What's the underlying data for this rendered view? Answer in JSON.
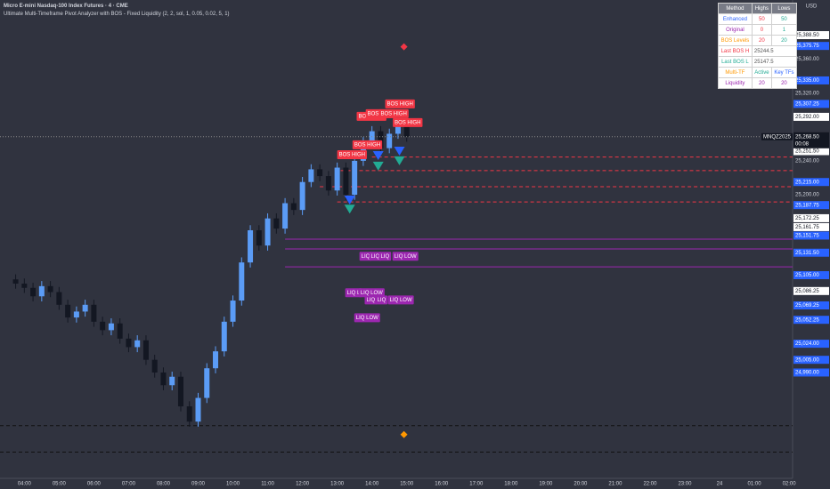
{
  "header": {
    "symbol": "Micro E-mini Nasdaq-100 Index Futures · 4 · CME",
    "indicator": "Ultimate Multi-Timeframe Pivot Analyzer with BOS - Fixed Liquidity (2, 2, sol, 1, 0.05, 0.02, 5, 1)",
    "currency": "USD"
  },
  "chart_data": {
    "type": "candlestick",
    "x": [
      3.75,
      4,
      4.25,
      4.5,
      4.75,
      5,
      5.25,
      5.5,
      5.75,
      6,
      6.25,
      6.5,
      6.75,
      7,
      7.25,
      7.5,
      7.75,
      8,
      8.25,
      8.5,
      8.75,
      9,
      9.25,
      9.5,
      9.75,
      10,
      10.25,
      10.5,
      10.75,
      11,
      11.25,
      11.5,
      11.75,
      12,
      12.25,
      12.5,
      12.75,
      13,
      13.25,
      13.5,
      13.75,
      14,
      14.25,
      14.5,
      14.75,
      15
    ],
    "open": [
      25100,
      25095,
      25090,
      25080,
      25092,
      25085,
      25070,
      25055,
      25062,
      25070,
      25050,
      25040,
      25048,
      25030,
      25020,
      25028,
      25005,
      24990,
      24975,
      24985,
      24950,
      24932,
      24960,
      24995,
      25015,
      25050,
      25075,
      25120,
      25158,
      25140,
      25172,
      25160,
      25190,
      25182,
      25215,
      25230,
      25222,
      25205,
      25232,
      25200,
      25240,
      25262,
      25275,
      25255,
      25272,
      25282
    ],
    "high": [
      25106,
      25101,
      25096,
      25098,
      25098,
      25091,
      25076,
      25068,
      25076,
      25076,
      25056,
      25054,
      25054,
      25036,
      25034,
      25034,
      25011,
      24996,
      24991,
      24991,
      24956,
      24966,
      25001,
      25021,
      25056,
      25081,
      25126,
      25164,
      25164,
      25178,
      25178,
      25196,
      25196,
      25221,
      25236,
      25236,
      25228,
      25238,
      25238,
      25246,
      25268,
      25281,
      25281,
      25278,
      25288,
      25288
    ],
    "low": [
      25089,
      25084,
      25074,
      25074,
      25079,
      25064,
      25049,
      25049,
      25056,
      25044,
      25034,
      25034,
      25024,
      25014,
      25014,
      24999,
      24984,
      24969,
      24969,
      24944,
      24926,
      24926,
      24954,
      24989,
      25009,
      25044,
      25069,
      25114,
      25134,
      25134,
      25154,
      25154,
      25176,
      25176,
      25209,
      25216,
      25199,
      25199,
      25194,
      25194,
      25234,
      25256,
      25249,
      25249,
      25266,
      25262.5
    ],
    "close": [
      25095,
      25090,
      25080,
      25092,
      25085,
      25070,
      25055,
      25062,
      25070,
      25050,
      25040,
      25048,
      25030,
      25020,
      25028,
      25005,
      24990,
      24975,
      24985,
      24950,
      24932,
      24960,
      24995,
      25015,
      25050,
      25075,
      25120,
      25158,
      25140,
      25172,
      25160,
      25190,
      25182,
      25215,
      25230,
      25222,
      25205,
      25232,
      25200,
      25240,
      25262,
      25275,
      25255,
      25272,
      25282,
      25268.5
    ],
    "up_color": "#5b9cf6",
    "down_color": "#131722",
    "xlim": [
      3.3,
      26.1
    ],
    "ylim": [
      24865,
      25430
    ],
    "xticks": [
      {
        "value": 4,
        "label": "04:00"
      },
      {
        "value": 5,
        "label": "05:00"
      },
      {
        "value": 6,
        "label": "06:00"
      },
      {
        "value": 7,
        "label": "07:00"
      },
      {
        "value": 8,
        "label": "08:00"
      },
      {
        "value": 9,
        "label": "09:00"
      },
      {
        "value": 10,
        "label": "10:00"
      },
      {
        "value": 11,
        "label": "11:00"
      },
      {
        "value": 12,
        "label": "12:00"
      },
      {
        "value": 13,
        "label": "13:00"
      },
      {
        "value": 14,
        "label": "14:00"
      },
      {
        "value": 15,
        "label": "15:00"
      },
      {
        "value": 16,
        "label": "16:00"
      },
      {
        "value": 17,
        "label": "17:00"
      },
      {
        "value": 18,
        "label": "18:00"
      },
      {
        "value": 19,
        "label": "19:00"
      },
      {
        "value": 20,
        "label": "20:00"
      },
      {
        "value": 21,
        "label": "21:00"
      },
      {
        "value": 22,
        "label": "22:00"
      },
      {
        "value": 23,
        "label": "23:00"
      },
      24,
      {
        "value": 25,
        "label": "01:00"
      },
      {
        "value": 26,
        "label": "02:00"
      }
    ],
    "yticks": [
      {
        "value": 25360,
        "label": "25,360.00"
      },
      {
        "value": 25320,
        "label": "25,320.00"
      },
      {
        "value": 25240,
        "label": "25,240.00"
      },
      {
        "value": 25200,
        "label": "25,200.00"
      }
    ],
    "price_markers": [
      {
        "value": 25388.5,
        "label": "25,388.50",
        "color": "#ffffff"
      },
      {
        "value": 25375.75,
        "label": "25,375.75",
        "color": "#2962ff"
      },
      {
        "value": 25335,
        "label": "25,335.00",
        "color": "#2962ff"
      },
      {
        "value": 25307.25,
        "label": "25,307.25",
        "color": "#2962ff"
      },
      {
        "value": 25292,
        "label": "25,292.00",
        "color": "#ffffff"
      },
      {
        "value": 25251.5,
        "label": "25,251.50",
        "color": "#ffffff"
      },
      {
        "value": 25215,
        "label": "25,215.00",
        "color": "#2962ff"
      },
      {
        "value": 25187.75,
        "label": "25,187.75",
        "color": "#2962ff"
      },
      {
        "value": 25172.25,
        "label": "25,172.25",
        "color": "#ffffff"
      },
      {
        "value": 25161.75,
        "label": "25,161.75",
        "color": "#ffffff"
      },
      {
        "value": 25151.75,
        "label": "25,151.75",
        "color": "#2962ff"
      },
      {
        "value": 25131.5,
        "label": "25,131.50",
        "color": "#2962ff"
      },
      {
        "value": 25105,
        "label": "25,105.00",
        "color": "#2962ff"
      },
      {
        "value": 25086.25,
        "label": "25,086.25",
        "color": "#ffffff"
      },
      {
        "value": 25069.25,
        "label": "25,069.25",
        "color": "#2962ff"
      },
      {
        "value": 25052.25,
        "label": "25,052.25",
        "color": "#2962ff"
      },
      {
        "value": 25024,
        "label": "25,024.00",
        "color": "#2962ff"
      },
      {
        "value": 25005,
        "label": "25,005.00",
        "color": "#2962ff"
      },
      {
        "value": 24990,
        "label": "24,990.00",
        "color": "#2962ff"
      }
    ],
    "last_price": {
      "value": 25268.5,
      "label": "25,268.50",
      "symbol": "MNQZ2025",
      "countdown": "00:08"
    },
    "levels": [
      {
        "price": 25244.5,
        "from": 14,
        "color": "#f23645",
        "dash": true
      },
      {
        "price": 25228.5,
        "from": 13.1,
        "color": "#f23645",
        "dash": true
      },
      {
        "price": 25209.5,
        "from": 12.5,
        "color": "#f23645",
        "dash": true
      },
      {
        "price": 25191.5,
        "from": 13,
        "color": "#f23645",
        "dash": true
      },
      {
        "price": 24927.25,
        "from": 3.3,
        "color": "#111111",
        "dash": true
      },
      {
        "price": 24896,
        "from": 3.3,
        "color": "#111111",
        "dash": true
      },
      {
        "price": 25147.5,
        "from": 11.5,
        "color": "#9c27b0",
        "dash": false
      },
      {
        "price": 25136,
        "from": 11.5,
        "color": "#9c27b0",
        "dash": false
      },
      {
        "price": 25114.75,
        "from": 11.5,
        "color": "#9c27b0",
        "dash": false
      }
    ],
    "bos_labels": [
      {
        "text": "BOS HIGH",
        "x": 13,
        "price": 25247.25
      },
      {
        "text": "BOS HIGH",
        "x": 13.44,
        "price": 25259
      },
      {
        "text": "BOS HIGH",
        "x": 13.56,
        "price": 25292.5
      },
      {
        "text": "BOS HIGH",
        "x": 13.82,
        "price": 25295.75
      },
      {
        "text": "BOS HIGH",
        "x": 14.2,
        "price": 25295.75
      },
      {
        "text": "BOS HIGH",
        "x": 14.38,
        "price": 25307.25
      },
      {
        "text": "BOS HIGH",
        "x": 14.6,
        "price": 25285.25
      }
    ],
    "liq_labels": [
      {
        "text": "LIQ",
        "x": 13.64,
        "price": 25127.25
      },
      {
        "text": "LIQ",
        "x": 13.92,
        "price": 25127.25
      },
      {
        "text": "LIQ",
        "x": 14.2,
        "price": 25127.25
      },
      {
        "text": "LIQ LOW",
        "x": 14.59,
        "price": 25127.25
      },
      {
        "text": "LIQ L",
        "x": 13.23,
        "price": 25084.25
      },
      {
        "text": "LIQ LOW",
        "x": 13.62,
        "price": 25084.25
      },
      {
        "text": "LIQ",
        "x": 13.79,
        "price": 25075.75
      },
      {
        "text": "LIQ",
        "x": 14.1,
        "price": 25075.75
      },
      {
        "text": "LIQ LOW",
        "x": 14.46,
        "price": 25075.75
      },
      {
        "text": "LIQ LOW",
        "x": 13.49,
        "price": 25054.75
      }
    ],
    "signals": [
      {
        "x": 14.18,
        "price": 25233.75,
        "color": "#22ab94",
        "shape": "triangle-down"
      },
      {
        "x": 14.79,
        "price": 25240,
        "color": "#22ab94",
        "shape": "triangle-down"
      },
      {
        "x": 13.36,
        "price": 25183,
        "color": "#22ab94",
        "shape": "triangle-down"
      },
      {
        "x": 14.18,
        "price": 25246.25,
        "color": "#2962ff",
        "shape": "triangle-down"
      },
      {
        "x": 14.79,
        "price": 25251.5,
        "color": "#2962ff",
        "shape": "triangle-down"
      },
      {
        "x": 13.36,
        "price": 25193.75,
        "color": "#2962ff",
        "shape": "triangle-down"
      },
      {
        "x": 14.92,
        "price": 25374.75,
        "color": "#f23645",
        "shape": "diamond"
      },
      {
        "x": 14.92,
        "price": 24916.75,
        "color": "#ff9800",
        "shape": "diamond"
      }
    ]
  },
  "table": {
    "header": [
      "Method",
      "Highs",
      "Lows"
    ],
    "rows": [
      [
        "Enhanced",
        "50",
        "50"
      ],
      [
        "Original",
        "0",
        "1"
      ],
      [
        "BOS Levels",
        "20",
        "20"
      ],
      [
        "Last BOS H",
        "25244.5"
      ],
      [
        "Last BOS L",
        "25147.5"
      ],
      [
        "Multi-TF",
        "Active",
        "Key TFs"
      ],
      [
        "Liquidity",
        "20",
        "20"
      ]
    ],
    "colors": [
      [
        "#2962ff",
        "#f23645",
        "#22ab94"
      ],
      [
        "#9c27b0",
        "#f23645",
        "#22ab94"
      ],
      [
        "#ff9800",
        "#f23645",
        "#22ab94"
      ],
      [
        "#f23645",
        "#555555"
      ],
      [
        "#22ab94",
        "#555555"
      ],
      [
        "#ff9800",
        "#22ab94",
        "#2962ff"
      ],
      [
        "#9c27b0",
        "#9c27b0",
        "#9c27b0"
      ]
    ]
  }
}
